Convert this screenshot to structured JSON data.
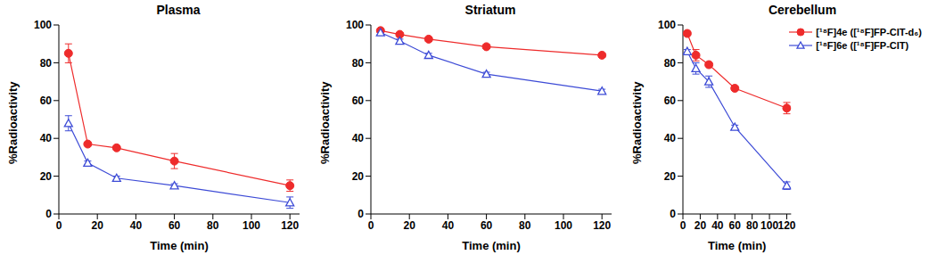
{
  "chart_data": [
    {
      "type": "line",
      "title": "Plasma",
      "x_label": "Time (min)",
      "y_label": "%Radioactivity",
      "x": [
        5,
        15,
        30,
        60,
        120
      ],
      "xlim": [
        0,
        125
      ],
      "xticks": [
        0,
        20,
        40,
        60,
        80,
        100,
        120
      ],
      "ylim": [
        0,
        100
      ],
      "yticks": [
        0,
        20,
        40,
        60,
        80,
        100
      ],
      "series": [
        {
          "color": "#ee2b2b",
          "marker": "circle",
          "line_style": "solid",
          "values": [
            85,
            37,
            35,
            28,
            15
          ],
          "errors": [
            5,
            1,
            1,
            4,
            3
          ]
        },
        {
          "color": "#3d4bd6",
          "marker": "triangle",
          "line_style": "solid",
          "values": [
            48,
            27,
            19,
            15,
            6
          ],
          "errors": [
            4,
            1,
            1,
            1,
            3
          ]
        }
      ]
    },
    {
      "type": "line",
      "title": "Striatum",
      "x_label": "Time (min)",
      "y_label": "%Radioactivity",
      "x": [
        5,
        15,
        30,
        60,
        120
      ],
      "xlim": [
        0,
        125
      ],
      "xticks": [
        0,
        20,
        40,
        60,
        80,
        100,
        120
      ],
      "ylim": [
        0,
        100
      ],
      "yticks": [
        0,
        20,
        40,
        60,
        80,
        100
      ],
      "series": [
        {
          "color": "#ee2b2b",
          "marker": "circle",
          "line_style": "solid",
          "values": [
            97,
            95,
            92.5,
            88.5,
            84
          ],
          "errors": [
            1,
            1,
            1,
            1,
            1
          ]
        },
        {
          "color": "#3d4bd6",
          "marker": "triangle",
          "line_style": "solid",
          "values": [
            96,
            91.5,
            84,
            74,
            65
          ],
          "errors": [
            1,
            1,
            1,
            1,
            1
          ]
        }
      ]
    },
    {
      "type": "line",
      "title": "Cerebellum",
      "x_label": "Time (min)",
      "y_label": "%Radioactivity",
      "x": [
        5,
        15,
        30,
        60,
        120
      ],
      "xlim": [
        0,
        125
      ],
      "xticks": [
        0,
        20,
        40,
        60,
        80,
        100,
        120
      ],
      "ylim": [
        0,
        100
      ],
      "yticks": [
        0,
        20,
        40,
        60,
        80,
        100
      ],
      "legend": "upper right",
      "series": [
        {
          "name": "[¹⁸F]4e ([¹⁸F]FP-CIT-d₆)",
          "color": "#ee2b2b",
          "marker": "circle",
          "line_style": "solid",
          "values": [
            95.5,
            84,
            79,
            66.5,
            56
          ],
          "errors": [
            1,
            3,
            1,
            1,
            3
          ]
        },
        {
          "name": "[¹⁸F]6e ([¹⁸F]FP-CIT)",
          "color": "#3d4bd6",
          "marker": "triangle",
          "line_style": "solid",
          "values": [
            86,
            77,
            70,
            46,
            15
          ],
          "errors": [
            1,
            3,
            3,
            1,
            2
          ]
        }
      ]
    }
  ]
}
